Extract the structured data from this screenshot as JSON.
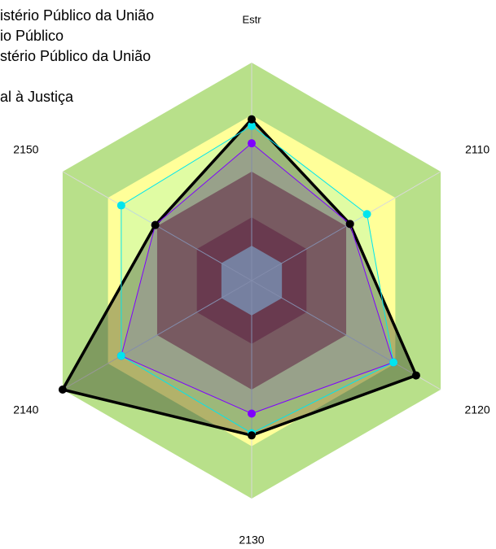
{
  "chart_data": {
    "type": "radar",
    "legend_lines": [
      "istério Público da União",
      "io Público",
      "stério Público da União",
      "al à Justiça"
    ],
    "categories": [
      "Estr",
      "2110",
      "2120",
      "2130",
      "2140",
      "2150"
    ],
    "ylim": [
      0,
      100
    ],
    "bands": [
      {
        "to": 100,
        "color": "#b8e08a"
      },
      {
        "to": 76,
        "color": "#ffff99"
      },
      {
        "to": 50,
        "color": "#c47b4e"
      },
      {
        "to": 29,
        "color": "#a9402c"
      },
      {
        "to": 16,
        "color": "#c2c2c2"
      }
    ],
    "series": [
      {
        "color": "#000000",
        "values": [
          74,
          52,
          87,
          71,
          100,
          51
        ]
      },
      {
        "color": "#00e5ee",
        "values": [
          71,
          61,
          75,
          70,
          69,
          69
        ]
      },
      {
        "color": "#7f00ff",
        "values": [
          63,
          52,
          75,
          61,
          69,
          51
        ]
      }
    ]
  }
}
